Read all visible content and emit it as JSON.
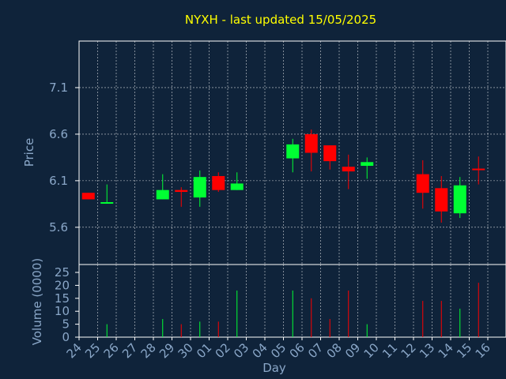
{
  "chart_data": {
    "type": "candlestick",
    "title": "NYXH - last updated 15/05/2025",
    "xlabel": "Day",
    "ylabel_price": "Price",
    "ylabel_volume": "Volume (0000)",
    "price_ticks": [
      5.6,
      6.1,
      6.6,
      7.1
    ],
    "price_tick_labels": [
      "5.6",
      "6.1",
      "6.6",
      "7.1"
    ],
    "price_ylim": [
      5.2,
      7.6
    ],
    "volume_ticks": [
      0,
      5,
      10,
      15,
      20,
      25
    ],
    "volume_tick_labels": [
      "0",
      "5",
      "10",
      "15",
      "20",
      "25"
    ],
    "volume_ylim": [
      0,
      25
    ],
    "x_tick_labels": [
      "24",
      "25",
      "26",
      "27",
      "28",
      "29",
      "30",
      "01",
      "02",
      "03",
      "04",
      "05",
      "06",
      "07",
      "08",
      "09",
      "10",
      "11",
      "12",
      "13",
      "14",
      "15",
      "16"
    ],
    "grid": true,
    "colors": {
      "up": "#00ff33",
      "down": "#ff0000",
      "background": "#0f233a",
      "grid": "#ffffff",
      "text": "#8aa7c8",
      "title": "#ffff00"
    },
    "candles": [
      {
        "day": "24",
        "open": 5.97,
        "high": 5.97,
        "low": 5.9,
        "close": 5.9,
        "volume": 0
      },
      {
        "day": "25",
        "open": 5.86,
        "high": 6.06,
        "low": 5.86,
        "close": 5.87,
        "volume": 5
      },
      {
        "day": "28",
        "open": 5.9,
        "high": 6.17,
        "low": 5.9,
        "close": 6.0,
        "volume": 7
      },
      {
        "day": "29",
        "open": 6.0,
        "high": 6.03,
        "low": 5.82,
        "close": 5.98,
        "volume": 5
      },
      {
        "day": "30",
        "open": 5.92,
        "high": 6.21,
        "low": 5.82,
        "close": 6.14,
        "volume": 6
      },
      {
        "day": "01",
        "open": 6.15,
        "high": 6.19,
        "low": 5.98,
        "close": 6.0,
        "volume": 6
      },
      {
        "day": "02",
        "open": 6.0,
        "high": 6.19,
        "low": 6.0,
        "close": 6.07,
        "volume": 18
      },
      {
        "day": "05",
        "open": 6.34,
        "high": 6.55,
        "low": 6.19,
        "close": 6.49,
        "volume": 18
      },
      {
        "day": "06",
        "open": 6.6,
        "high": 6.65,
        "low": 6.2,
        "close": 6.4,
        "volume": 15
      },
      {
        "day": "07",
        "open": 6.48,
        "high": 6.48,
        "low": 6.22,
        "close": 6.31,
        "volume": 7
      },
      {
        "day": "08",
        "open": 6.25,
        "high": 6.38,
        "low": 6.01,
        "close": 6.2,
        "volume": 18
      },
      {
        "day": "09",
        "open": 6.26,
        "high": 6.35,
        "low": 6.12,
        "close": 6.3,
        "volume": 5
      },
      {
        "day": "12",
        "open": 6.17,
        "high": 6.32,
        "low": 5.8,
        "close": 5.97,
        "volume": 14
      },
      {
        "day": "13",
        "open": 6.02,
        "high": 6.15,
        "low": 5.65,
        "close": 5.77,
        "volume": 14
      },
      {
        "day": "14",
        "open": 5.75,
        "high": 6.14,
        "low": 5.7,
        "close": 6.05,
        "volume": 11
      },
      {
        "day": "15",
        "open": 6.23,
        "high": 6.36,
        "low": 6.06,
        "close": 6.22,
        "volume": 21
      }
    ]
  }
}
